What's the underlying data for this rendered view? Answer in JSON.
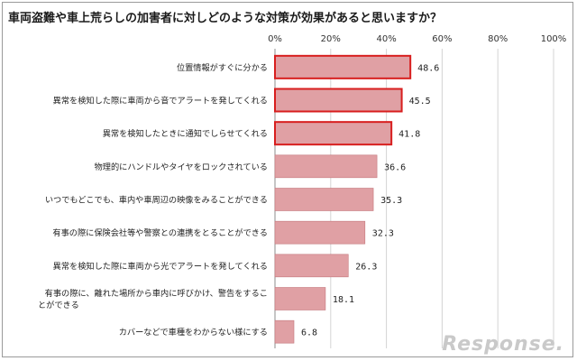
{
  "title": "車両盗難や車上荒らしの加害者に対しどのような対策が効果があると思いますか？",
  "watermark": "Response.",
  "colors": {
    "bar_fill": "#e0a0a4",
    "bar_stroke": "#c4777c",
    "highlight_stroke": "#d81e1e"
  },
  "chart_data": {
    "type": "bar",
    "orientation": "horizontal",
    "title": "車両盗難や車上荒らしの加害者に対しどのような対策が効果があると思いますか？",
    "xlim": [
      0,
      100
    ],
    "xticks": [
      "0%",
      "20%",
      "40%",
      "60%",
      "80%",
      "100%"
    ],
    "grid": true,
    "categories": [
      [
        "位置情報がすぐに分かる"
      ],
      [
        "異常を検知した際に車両から音でアラートを発してくれる"
      ],
      [
        "異常を検知したときに通知でしらせてくれる"
      ],
      [
        "物理的にハンドルやタイヤをロックされている"
      ],
      [
        "いつでもどこでも、車内や車周辺の映像をみることができる"
      ],
      [
        "有事の際に保険会社等や警察との連携をとることができる"
      ],
      [
        "異常を検知した際に車両から光でアラートを発してくれる"
      ],
      [
        "有事の際に、離れた場所から車内に呼びかけ、警告をするこ",
        "とができる"
      ],
      [
        "カバーなどで車種をわからない様にする"
      ]
    ],
    "values": [
      48.6,
      45.5,
      41.8,
      36.6,
      35.3,
      32.3,
      26.3,
      18.1,
      6.8
    ],
    "value_labels": [
      "48.6",
      "45.5",
      "41.8",
      "36.6",
      "35.3",
      "32.3",
      "26.3",
      "18.1",
      "6.8"
    ],
    "highlighted": [
      true,
      true,
      true,
      false,
      false,
      false,
      false,
      false,
      false
    ]
  }
}
